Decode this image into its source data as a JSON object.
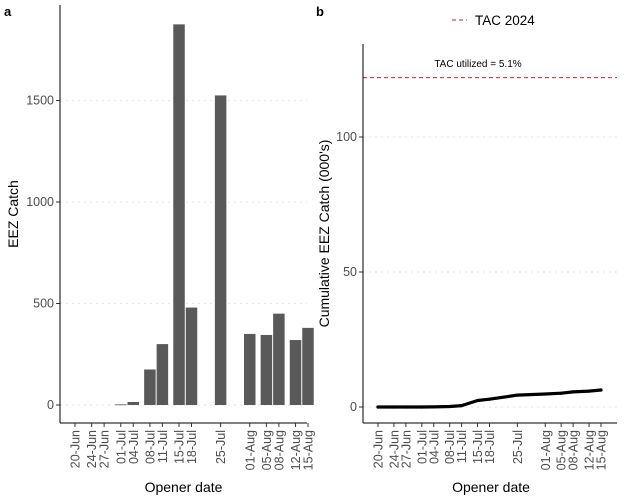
{
  "panels": {
    "a_tag": "a",
    "b_tag": "b"
  },
  "chart_data": [
    {
      "type": "bar",
      "panel": "a",
      "title": "",
      "xlabel": "Opener date",
      "ylabel": "EEZ Catch",
      "ylim": [
        0,
        1950
      ],
      "yticks": [
        0,
        500,
        1000,
        1500
      ],
      "ytick_labels": [
        "0",
        "500",
        "1000",
        "1500"
      ],
      "x_dates": [
        "20-Jun",
        "24-Jun",
        "27-Jun",
        "01-Jul",
        "04-Jul",
        "08-Jul",
        "11-Jul",
        "15-Jul",
        "18-Jul",
        "25-Jul",
        "01-Aug",
        "05-Aug",
        "08-Aug",
        "12-Aug",
        "15-Aug"
      ],
      "x_days": [
        0,
        4,
        7,
        11,
        14,
        18,
        21,
        25,
        28,
        35,
        42,
        46,
        49,
        53,
        56
      ],
      "values": [
        0,
        0,
        0,
        3,
        15,
        175,
        300,
        1875,
        480,
        1525,
        350,
        345,
        450,
        320,
        380
      ],
      "bar_color": "#595959",
      "grid": "horizontal-dotted"
    },
    {
      "type": "line",
      "panel": "b",
      "title": "",
      "xlabel": "Opener date",
      "ylabel": "Cumulative EEZ Catch (000's)",
      "ylim": [
        -3,
        135
      ],
      "yticks": [
        0,
        50,
        100
      ],
      "ytick_labels": [
        "0",
        "50",
        "100"
      ],
      "x_dates": [
        "20-Jun",
        "24-Jun",
        "27-Jun",
        "01-Jul",
        "04-Jul",
        "08-Jul",
        "11-Jul",
        "15-Jul",
        "18-Jul",
        "25-Jul",
        "01-Aug",
        "05-Aug",
        "08-Aug",
        "12-Aug",
        "15-Aug"
      ],
      "x_days": [
        0,
        4,
        7,
        11,
        14,
        18,
        21,
        25,
        28,
        35,
        42,
        46,
        49,
        53,
        56
      ],
      "series": [
        {
          "values": [
            0,
            0,
            0,
            0.003,
            0.02,
            0.2,
            0.5,
            2.4,
            2.9,
            4.4,
            4.8,
            5.1,
            5.6,
            5.9,
            6.3
          ],
          "color": "#000000"
        }
      ],
      "reference_line": {
        "name": "TAC 2024",
        "value": 122,
        "color": "#cc2222",
        "style": "dashed"
      },
      "annotation": "TAC utilized = 5.1%",
      "legend": "top-center",
      "grid": "horizontal-dotted"
    }
  ]
}
